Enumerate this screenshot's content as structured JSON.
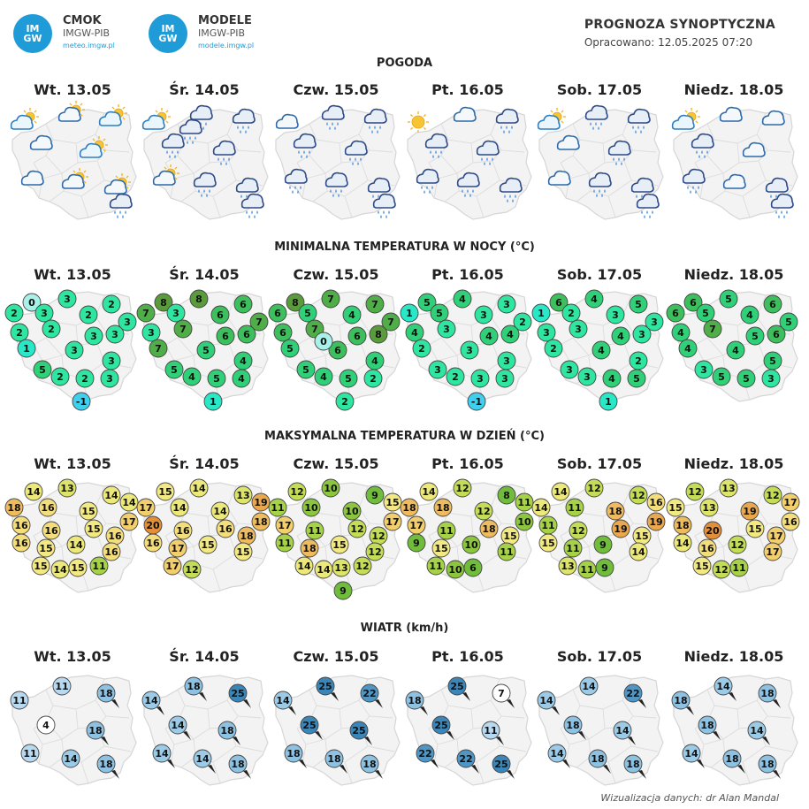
{
  "logos": [
    {
      "badge": [
        "IM",
        "GW"
      ],
      "name": "CMOK",
      "sub": "IMGW-PIB",
      "url": "meteo.imgw.pl"
    },
    {
      "badge": [
        "IM",
        "GW"
      ],
      "name": "MODELE",
      "sub": "IMGW-PIB",
      "url": "modele.imgw.pl"
    }
  ],
  "header": {
    "title": "PROGNOZA SYNOPTYCZNA",
    "date": "Opracowano: 12.05.2025 07:20"
  },
  "days": [
    "Wt. 13.05",
    "Śr. 14.05",
    "Czw. 15.05",
    "Pt. 16.05",
    "Sob. 17.05",
    "Niedz. 18.05"
  ],
  "sections": {
    "weather": "POGODA",
    "tmin": "MINIMALNA TEMPERATURA W NOCY (°C)",
    "tmax": "MAKSYMALNA TEMPERATURA W DZIEŃ (°C)",
    "wind": "WIATR (km/h)"
  },
  "weather_icons": [
    [
      "sun-cloud",
      "cloud-sun",
      "sun-cloud",
      "cloud",
      "sun-cloud",
      "cloud",
      "cloud-sun",
      "cloud-sun",
      "cloud-rain"
    ],
    [
      "sun-cloud",
      "cloud-rain",
      "cloud-rain",
      "cloud-rain",
      "cloud-rain",
      "cloud-sun",
      "cloud-rain",
      "cloud-rain",
      "cloud-rain",
      "cloud-rain"
    ],
    [
      "cloud",
      "cloud-rain",
      "cloud-rain",
      "cloud-rain",
      "cloud-rain",
      "cloud-rain",
      "cloud-rain",
      "cloud-rain",
      "cloud-rain"
    ],
    [
      "sun",
      "cloud",
      "cloud-rain",
      "cloud-rain",
      "cloud-rain",
      "cloud-rain",
      "cloud-rain",
      "cloud-rain"
    ],
    [
      "sun-cloud",
      "cloud-rain",
      "cloud-rain",
      "cloud",
      "cloud-rain",
      "cloud",
      "cloud-rain",
      "cloud-rain",
      "cloud-rain"
    ],
    [
      "sun-cloud",
      "cloud",
      "cloud",
      "cloud-rain",
      "cloud",
      "cloud-rain",
      "cloud",
      "cloud-rain",
      "cloud-rain"
    ]
  ],
  "tmin": [
    [
      0,
      3,
      2,
      2,
      3,
      2,
      3,
      2,
      2,
      3,
      3,
      1,
      3,
      3,
      5,
      2,
      2,
      3,
      -1
    ],
    [
      8,
      8,
      6,
      7,
      3,
      6,
      7,
      3,
      7,
      6,
      6,
      7,
      5,
      4,
      5,
      4,
      5,
      4,
      1
    ],
    [
      8,
      7,
      7,
      6,
      5,
      4,
      7,
      6,
      7,
      6,
      8,
      5,
      6,
      4,
      5,
      4,
      5,
      2,
      2,
      0
    ],
    [
      5,
      4,
      3,
      1,
      5,
      3,
      2,
      4,
      3,
      4,
      4,
      2,
      3,
      3,
      3,
      2,
      3,
      3,
      -1
    ],
    [
      6,
      4,
      5,
      1,
      2,
      3,
      3,
      3,
      3,
      4,
      3,
      2,
      4,
      2,
      3,
      3,
      4,
      5,
      1
    ],
    [
      6,
      5,
      6,
      6,
      5,
      4,
      5,
      4,
      7,
      5,
      6,
      4,
      4,
      5,
      3,
      5,
      5,
      3
    ]
  ],
  "tmax": [
    [
      14,
      13,
      14,
      14,
      18,
      16,
      15,
      17,
      16,
      16,
      15,
      16,
      16,
      15,
      14,
      16,
      15,
      14,
      15,
      11
    ],
    [
      15,
      14,
      13,
      19,
      17,
      14,
      14,
      18,
      20,
      16,
      16,
      18,
      16,
      17,
      15,
      15,
      17,
      12
    ],
    [
      12,
      10,
      9,
      15,
      11,
      10,
      10,
      17,
      17,
      11,
      12,
      12,
      11,
      18,
      15,
      12,
      14,
      14,
      13,
      12,
      9
    ],
    [
      14,
      12,
      8,
      11,
      18,
      18,
      12,
      10,
      17,
      11,
      18,
      15,
      9,
      15,
      10,
      11,
      11,
      10,
      6
    ],
    [
      14,
      12,
      12,
      16,
      14,
      11,
      18,
      19,
      11,
      12,
      19,
      15,
      15,
      11,
      9,
      14,
      13,
      11,
      9
    ],
    [
      12,
      13,
      12,
      17,
      15,
      13,
      19,
      16,
      18,
      20,
      15,
      17,
      14,
      16,
      12,
      17,
      15,
      12,
      11
    ]
  ],
  "wind": [
    [
      11,
      11,
      18,
      4,
      18,
      11,
      14,
      18
    ],
    [
      14,
      18,
      25,
      14,
      18,
      14,
      14,
      18
    ],
    [
      14,
      25,
      22,
      25,
      25,
      18,
      18,
      18
    ],
    [
      18,
      25,
      7,
      25,
      11,
      22,
      22,
      25
    ],
    [
      14,
      14,
      22,
      18,
      14,
      14,
      18,
      18
    ],
    [
      18,
      14,
      18,
      18,
      14,
      14,
      18,
      18
    ]
  ],
  "credit": "Wizualizacja danych: dr Alan Mandal"
}
